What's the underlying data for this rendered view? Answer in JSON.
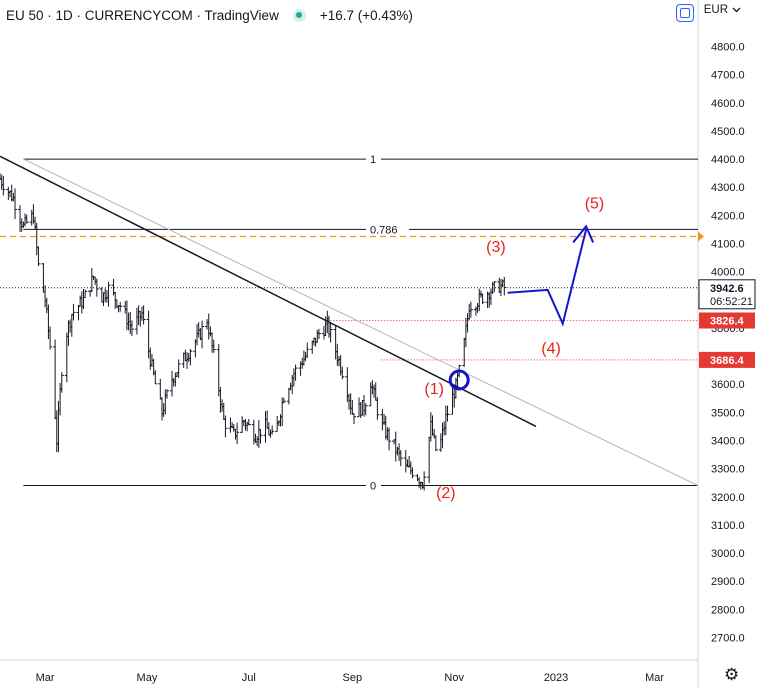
{
  "header": {
    "title": "EU 50 · 1D · CURRENCYCOM · TradingView",
    "change": "+16.7 (+0.43%)"
  },
  "currency": {
    "label": "EUR",
    "icon": "chevron-down-icon"
  },
  "colors": {
    "wave": "#e8231a",
    "projection": "#1515d0",
    "orange": "#f7931e",
    "line_red": "#e53935"
  },
  "chart_data": {
    "type": "candlestick",
    "symbol": "EU 50",
    "timeframe": "1D",
    "currency": "EUR",
    "ylim": [
      2620,
      4880
    ],
    "y_ticks": [
      "4800.0",
      "4700.0",
      "4600.0",
      "4500.0",
      "4400.0",
      "4300.0",
      "4200.0",
      "4100.0",
      "4000.0",
      "3900.0",
      "3800.0",
      "3700.0",
      "3600.0",
      "3500.0",
      "3400.0",
      "3300.0",
      "3200.0",
      "3100.0",
      "3000.0",
      "2900.0",
      "2800.0",
      "2700.0"
    ],
    "x_ticks": [
      "Mar",
      "May",
      "Jul",
      "Sep",
      "Nov",
      "2023",
      "Mar"
    ],
    "x_range": [
      "2022-02-02",
      "2023-03-27"
    ],
    "price_path": [
      [
        "2022-02-02",
        4330
      ],
      [
        "2022-02-10",
        4260
      ],
      [
        "2022-02-16",
        4160
      ],
      [
        "2022-02-22",
        4200
      ],
      [
        "2022-02-25",
        4020
      ],
      [
        "2022-03-01",
        3900
      ],
      [
        "2022-03-05",
        3680
      ],
      [
        "2022-03-08",
        3400
      ],
      [
        "2022-03-12",
        3740
      ],
      [
        "2022-03-17",
        3850
      ],
      [
        "2022-03-24",
        3900
      ],
      [
        "2022-03-30",
        3980
      ],
      [
        "2022-04-04",
        3910
      ],
      [
        "2022-04-08",
        3940
      ],
      [
        "2022-04-15",
        3880
      ],
      [
        "2022-04-22",
        3800
      ],
      [
        "2022-04-28",
        3850
      ],
      [
        "2022-05-02",
        3720
      ],
      [
        "2022-05-06",
        3600
      ],
      [
        "2022-05-10",
        3500
      ],
      [
        "2022-05-16",
        3620
      ],
      [
        "2022-05-22",
        3680
      ],
      [
        "2022-06-01",
        3770
      ],
      [
        "2022-06-06",
        3830
      ],
      [
        "2022-06-10",
        3700
      ],
      [
        "2022-06-16",
        3470
      ],
      [
        "2022-06-22",
        3420
      ],
      [
        "2022-06-28",
        3470
      ],
      [
        "2022-07-05",
        3420
      ],
      [
        "2022-07-11",
        3450
      ],
      [
        "2022-07-16",
        3400
      ],
      [
        "2022-07-22",
        3560
      ],
      [
        "2022-07-28",
        3640
      ],
      [
        "2022-08-04",
        3700
      ],
      [
        "2022-08-12",
        3780
      ],
      [
        "2022-08-17",
        3810
      ],
      [
        "2022-08-22",
        3720
      ],
      [
        "2022-08-28",
        3610
      ],
      [
        "2022-09-01",
        3500
      ],
      [
        "2022-09-08",
        3520
      ],
      [
        "2022-09-12",
        3610
      ],
      [
        "2022-09-18",
        3460
      ],
      [
        "2022-09-26",
        3380
      ],
      [
        "2022-10-03",
        3300
      ],
      [
        "2022-10-08",
        3290
      ],
      [
        "2022-10-13",
        3250
      ],
      [
        "2022-10-18",
        3450
      ],
      [
        "2022-10-22",
        3340
      ],
      [
        "2022-10-27",
        3480
      ],
      [
        "2022-11-02",
        3590
      ],
      [
        "2022-11-06",
        3700
      ],
      [
        "2022-11-10",
        3880
      ],
      [
        "2022-11-16",
        3900
      ],
      [
        "2022-11-22",
        3930
      ],
      [
        "2022-11-28",
        3950
      ],
      [
        "2022-12-01",
        3943
      ]
    ],
    "last_price": "3942.6",
    "countdown": "06:52:21",
    "price_labels": [
      {
        "value": 3942.6,
        "label": "3942.6"
      },
      {
        "value": 3826.4,
        "label": "3826.4"
      },
      {
        "value": 3686.4,
        "label": "3686.4"
      }
    ],
    "fibonacci": [
      {
        "level": "1",
        "value": 4400
      },
      {
        "level": "0.786",
        "value": 4150
      },
      {
        "level": "0",
        "value": 3240
      }
    ],
    "orange_level": 4125,
    "trendlines": [
      {
        "color": "black",
        "from": [
          "2022-02-02",
          4410
        ],
        "to": [
          "2022-12-20",
          3450
        ]
      },
      {
        "color": "gray",
        "from": [
          "2022-02-16",
          4400
        ],
        "to": [
          "2023-03-27",
          3240
        ]
      }
    ],
    "wave_labels": [
      {
        "label": "(1)",
        "date": "2022-10-20",
        "value": 3565
      },
      {
        "label": "(2)",
        "date": "2022-10-27",
        "value": 3195
      },
      {
        "label": "(3)",
        "date": "2022-11-26",
        "value": 4070
      },
      {
        "label": "(4)",
        "date": "2022-12-29",
        "value": 3710
      },
      {
        "label": "(5)",
        "date": "2023-01-24",
        "value": 4225
      }
    ],
    "projection": [
      [
        "2022-12-03",
        3925
      ],
      [
        "2022-12-27",
        3935
      ],
      [
        "2023-01-05",
        3815
      ],
      [
        "2023-01-19",
        4150
      ]
    ],
    "breakout_marker": {
      "date": "2022-11-04",
      "value": 3615
    }
  }
}
